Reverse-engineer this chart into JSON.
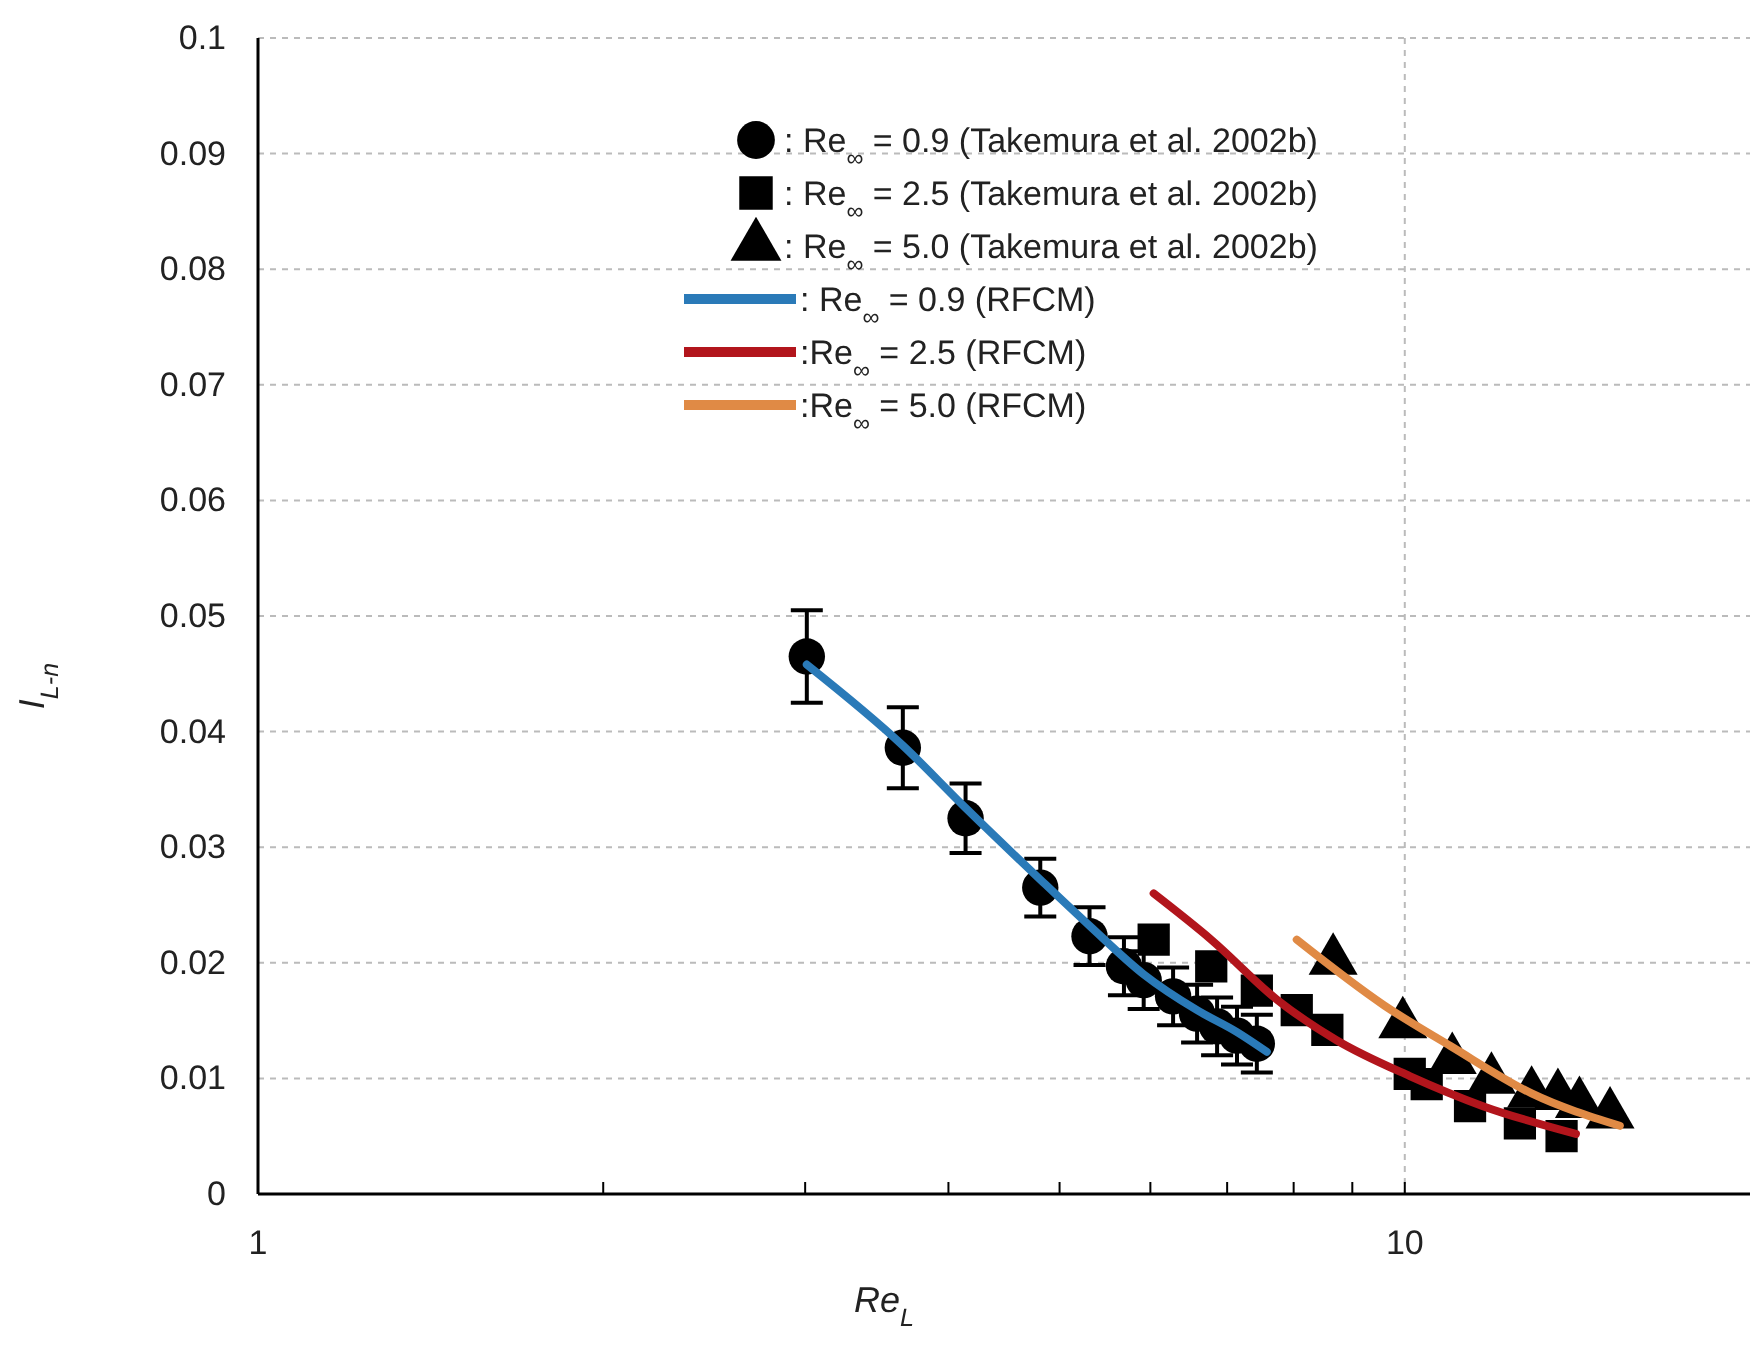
{
  "chart_data": {
    "type": "scatter",
    "xlabel": "Re$_{L}$",
    "ylabel": "I$_{L-n}$",
    "log": "x",
    "xlim": [
      1,
      20
    ],
    "ylim": [
      0,
      0.1
    ],
    "xticks": [
      1,
      {
        "value": 2,
        "label": null
      },
      {
        "value": 3,
        "label": null
      },
      {
        "value": 4,
        "label": null
      },
      {
        "value": 5,
        "label": null
      },
      {
        "value": 6,
        "label": null
      },
      {
        "value": 7,
        "label": null
      },
      {
        "value": 8,
        "label": null
      },
      {
        "value": 9,
        "label": null
      },
      10
    ],
    "yticks": [
      0,
      0.01,
      0.02,
      0.03,
      0.04,
      0.05,
      0.06,
      0.07,
      0.08,
      0.09,
      0.1
    ],
    "grid": true,
    "legend": "top",
    "series": [
      {
        "name": ": Re$_{∞}$ = 0.9 (Takemura et al. 2002b)",
        "marker": "circle",
        "color": "#000000",
        "x": [
          3.01,
          3.65,
          4.14,
          4.81,
          5.31,
          5.69,
          5.92,
          6.28,
          6.59,
          6.86,
          7.14,
          7.43
        ],
        "values": [
          0.0465,
          0.0386,
          0.0325,
          0.0265,
          0.0223,
          0.0197,
          0.0185,
          0.0171,
          0.0156,
          0.0145,
          0.0137,
          0.013
        ],
        "errors": [
          0.004,
          0.0035,
          0.003,
          0.0025,
          0.0025,
          0.0025,
          0.0025,
          0.0025,
          0.0025,
          0.0025,
          0.0025,
          0.0025
        ]
      },
      {
        "name": ": Re$_{∞}$ = 2.5 (Takemura et al. 2002b)",
        "marker": "square",
        "color": "#000000",
        "x": [
          6.04,
          6.78,
          7.43,
          8.05,
          8.56,
          10.1,
          10.45,
          11.4,
          12.6,
          13.7
        ],
        "values": [
          0.022,
          0.0197,
          0.0176,
          0.0159,
          0.0142,
          0.0104,
          0.0095,
          0.0076,
          0.0061,
          0.005
        ]
      },
      {
        "name": ": Re$_{∞}$ = 5.0 (Takemura et al. 2002b)",
        "marker": "triangle",
        "color": "#000000",
        "x": [
          8.66,
          9.96,
          11.0,
          11.9,
          12.9,
          13.6,
          14.2,
          15.1
        ],
        "values": [
          0.0202,
          0.0147,
          0.0116,
          0.0099,
          0.0087,
          0.0085,
          0.0078,
          0.0069
        ]
      },
      {
        "name": ": Re$_{∞}$ = 0.9 (RFCM)",
        "type": "line",
        "marker": "none",
        "color": "#2a7ab8",
        "x": [
          3.01,
          3.65,
          4.14,
          4.81,
          5.31,
          5.92,
          6.59,
          7.14,
          7.58
        ],
        "values": [
          0.0458,
          0.0388,
          0.0334,
          0.0272,
          0.0232,
          0.019,
          0.0159,
          0.014,
          0.0123
        ]
      },
      {
        "name": ":Re$_{∞}$ = 2.5 (RFCM)",
        "type": "line",
        "marker": "none",
        "color": "#b2151c",
        "x": [
          6.04,
          6.78,
          7.74,
          8.72,
          10.1,
          11.7,
          14.1
        ],
        "values": [
          0.026,
          0.022,
          0.0168,
          0.0133,
          0.0102,
          0.0076,
          0.0052
        ]
      },
      {
        "name": ":Re$_{∞}$ = 5.0 (RFCM)",
        "type": "line",
        "marker": "none",
        "color": "#e08a45",
        "x": [
          8.05,
          9.6,
          10.96,
          12.9,
          15.4
        ],
        "values": [
          0.022,
          0.0163,
          0.0128,
          0.0087,
          0.0059
        ]
      }
    ]
  }
}
